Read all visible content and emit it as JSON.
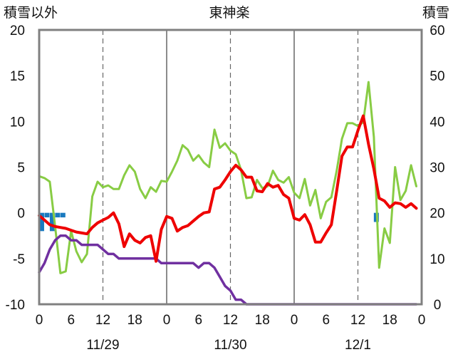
{
  "chart_data": {
    "type": "line",
    "title": "東神楽",
    "ylabel_left": "積雪以外",
    "ylabel_right": "積雪",
    "ylim_left": [
      -10,
      20
    ],
    "ylim_right": [
      0,
      60
    ],
    "xlim": [
      0,
      72
    ],
    "yticks_left": [
      "20",
      "15",
      "10",
      "5",
      "0",
      "-5",
      "-10"
    ],
    "yticks_right": [
      "60",
      "50",
      "40",
      "30",
      "20",
      "10",
      "0"
    ],
    "xtick_labels": [
      "0",
      "6",
      "12",
      "18",
      "0",
      "6",
      "12",
      "18",
      "0",
      "6",
      "12",
      "18",
      "0"
    ],
    "date_labels": [
      "11/29",
      "11/30",
      "12/1"
    ],
    "grid": "dashed vertical lines at 12:00, solid vertical lines at 0:00",
    "colors": {
      "temperature": "#ee0000",
      "dewpoint": "#88cc44",
      "snow_depth": "#7030a0",
      "precipitation": "#1a7abf"
    },
    "series": [
      {
        "key": "temperature",
        "axis": "left",
        "x": [
          0,
          1,
          2,
          3,
          4,
          5,
          6,
          7,
          8,
          9,
          10,
          11,
          12,
          13,
          14,
          15,
          16,
          17,
          18,
          19,
          20,
          21,
          22,
          23,
          24,
          25,
          26,
          27,
          28,
          29,
          30,
          31,
          32,
          33,
          34,
          35,
          36,
          37,
          38,
          39,
          40,
          41,
          42,
          43,
          44,
          45,
          46,
          47,
          48,
          49,
          50,
          51,
          52,
          53,
          54,
          55,
          56,
          57,
          58,
          59,
          60,
          61,
          62,
          63,
          64,
          65,
          66,
          67,
          68,
          69,
          70,
          71
        ],
        "values": [
          -0.3,
          -0.8,
          -1.3,
          -1.5,
          -1.6,
          -1.7,
          -1.9,
          -2.1,
          -2.2,
          -2.3,
          -1.6,
          -1.1,
          -0.8,
          -0.5,
          0.0,
          -1.2,
          -3.7,
          -2.3,
          -3.0,
          -3.3,
          -2.7,
          -2.5,
          -5.3,
          -1.8,
          -0.4,
          -0.6,
          -2.0,
          -1.6,
          -1.4,
          -0.9,
          -0.4,
          0.0,
          0.1,
          2.6,
          2.8,
          3.6,
          4.5,
          5.2,
          4.7,
          3.9,
          3.9,
          2.4,
          2.3,
          3.2,
          2.8,
          3.0,
          2.0,
          1.6,
          -0.6,
          -0.8,
          -0.2,
          -1.3,
          -3.2,
          -3.2,
          -2.2,
          -1.3,
          2.4,
          6.2,
          7.2,
          7.2,
          9.0,
          10.6,
          7.5,
          4.8,
          1.6,
          1.3,
          0.6,
          1.1,
          1.0,
          0.6,
          1.0,
          0.5
        ]
      },
      {
        "key": "dewpoint",
        "axis": "left",
        "x": [
          0,
          1,
          2,
          3,
          4,
          5,
          6,
          7,
          8,
          9,
          10,
          11,
          12,
          13,
          14,
          15,
          16,
          17,
          18,
          19,
          20,
          21,
          22,
          23,
          24,
          25,
          26,
          27,
          28,
          29,
          30,
          31,
          32,
          33,
          34,
          35,
          36,
          37,
          38,
          39,
          40,
          41,
          42,
          43,
          44,
          45,
          46,
          47,
          48,
          49,
          50,
          51,
          52,
          53,
          54,
          55,
          56,
          57,
          58,
          59,
          60,
          61,
          62,
          63,
          64,
          65,
          66,
          67,
          68,
          69,
          70,
          71
        ],
        "values": [
          4.0,
          3.8,
          3.4,
          -1.5,
          -6.6,
          -6.4,
          -2.0,
          -4.2,
          -5.4,
          -4.5,
          1.8,
          3.4,
          2.8,
          3.0,
          2.6,
          2.6,
          4.1,
          5.2,
          4.5,
          2.6,
          1.6,
          2.8,
          2.3,
          3.5,
          3.4,
          4.5,
          5.7,
          7.4,
          6.9,
          5.7,
          6.3,
          5.5,
          5.0,
          9.1,
          7.1,
          7.6,
          6.8,
          6.4,
          4.7,
          1.6,
          1.7,
          3.6,
          2.7,
          2.9,
          4.6,
          3.6,
          3.3,
          3.9,
          2.2,
          1.6,
          3.7,
          0.8,
          2.5,
          -0.6,
          1.2,
          1.7,
          4.6,
          8.1,
          9.8,
          9.8,
          9.5,
          9.9,
          14.3,
          8.3,
          -6.0,
          -1.7,
          -3.3,
          5.0,
          1.4,
          2.4,
          5.2,
          2.9
        ]
      },
      {
        "key": "snow_depth",
        "axis": "right",
        "x": [
          0,
          1,
          2,
          3,
          4,
          5,
          6,
          7,
          8,
          9,
          10,
          11,
          12,
          13,
          14,
          15,
          16,
          17,
          18,
          19,
          20,
          21,
          22,
          23,
          24,
          25,
          26,
          27,
          28,
          29,
          30,
          31,
          32,
          33,
          34,
          35,
          36,
          37,
          38,
          39,
          40,
          41,
          42,
          43,
          44,
          45,
          46,
          47,
          48,
          49,
          50,
          51,
          52,
          53,
          54,
          55,
          56,
          57,
          58,
          59,
          60,
          61,
          62,
          63,
          64,
          65,
          66,
          67,
          68,
          69,
          70,
          71
        ],
        "values": [
          7,
          9,
          12,
          14,
          15,
          15,
          14,
          14,
          13,
          13,
          13,
          13,
          12,
          11,
          11,
          10,
          10,
          10,
          10,
          10,
          10,
          10,
          10,
          9,
          9,
          9,
          9,
          9,
          9,
          9,
          8,
          9,
          9,
          8,
          6,
          4,
          3,
          1,
          1,
          0,
          0,
          0,
          0,
          0,
          0,
          0,
          0,
          0,
          0,
          0,
          0,
          0,
          0,
          0,
          0,
          0,
          0,
          0,
          0,
          0,
          0,
          0,
          0,
          0,
          0,
          0,
          0,
          0,
          0,
          0,
          0,
          0
        ]
      },
      {
        "key": "precipitation",
        "axis": "left",
        "type": "bar",
        "x": [
          0,
          1,
          2,
          3,
          4,
          60,
          61,
          62,
          63,
          64
        ],
        "values": [
          -2,
          -0.5,
          -2,
          -0.5,
          -0.5,
          0,
          0,
          0,
          -1,
          0
        ]
      }
    ]
  }
}
